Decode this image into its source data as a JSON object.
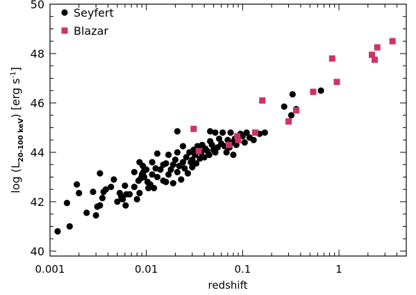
{
  "chart_data": {
    "type": "scatter",
    "xscale": "log",
    "xlim": [
      0.001,
      5.0
    ],
    "ylim": [
      39.8,
      50.0
    ],
    "xlabel": "redshift",
    "ylabel": {
      "prefix": "log (L",
      "subscript": "20-100 keV",
      "suffix": ") [erg s",
      "superscript": "-1",
      "close": "]"
    },
    "xticks": [
      {
        "value": 0.001,
        "label": "0.001"
      },
      {
        "value": 0.01,
        "label": "0.01"
      },
      {
        "value": 0.1,
        "label": "0.1"
      },
      {
        "value": 1,
        "label": "1"
      }
    ],
    "yticks": [
      {
        "value": 40,
        "label": "40"
      },
      {
        "value": 42,
        "label": "42"
      },
      {
        "value": 44,
        "label": "44"
      },
      {
        "value": 46,
        "label": "46"
      },
      {
        "value": 48,
        "label": "48"
      },
      {
        "value": 50,
        "label": "50"
      }
    ],
    "legend_position": "top-left",
    "series": [
      {
        "name": "Seyfert",
        "marker": "circle",
        "color": "#000000",
        "points": [
          [
            0.0012,
            40.8
          ],
          [
            0.0015,
            41.95
          ],
          [
            0.0016,
            41.0
          ],
          [
            0.0019,
            42.7
          ],
          [
            0.002,
            42.35
          ],
          [
            0.0024,
            41.55
          ],
          [
            0.0028,
            42.4
          ],
          [
            0.003,
            41.45
          ],
          [
            0.0031,
            41.8
          ],
          [
            0.0033,
            41.85
          ],
          [
            0.0033,
            43.15
          ],
          [
            0.0035,
            42.15
          ],
          [
            0.0036,
            42.4
          ],
          [
            0.0038,
            42.5
          ],
          [
            0.0043,
            42.6
          ],
          [
            0.0046,
            42.9
          ],
          [
            0.005,
            42.0
          ],
          [
            0.0053,
            42.35
          ],
          [
            0.0055,
            42.2
          ],
          [
            0.0057,
            42.1
          ],
          [
            0.006,
            42.65
          ],
          [
            0.0061,
            41.85
          ],
          [
            0.0062,
            42.3
          ],
          [
            0.0067,
            42.3
          ],
          [
            0.0075,
            42.6
          ],
          [
            0.0075,
            43.2
          ],
          [
            0.008,
            42.1
          ],
          [
            0.0083,
            42.85
          ],
          [
            0.0085,
            42.35
          ],
          [
            0.0085,
            43.6
          ],
          [
            0.0088,
            42.95
          ],
          [
            0.009,
            43.1
          ],
          [
            0.0092,
            43.45
          ],
          [
            0.0093,
            43.2
          ],
          [
            0.0095,
            43.0
          ],
          [
            0.01,
            43.3
          ],
          [
            0.0103,
            42.8
          ],
          [
            0.0105,
            42.55
          ],
          [
            0.011,
            42.7
          ],
          [
            0.0115,
            43.6
          ],
          [
            0.0115,
            43.1
          ],
          [
            0.012,
            42.55
          ],
          [
            0.0125,
            43.35
          ],
          [
            0.013,
            43.0
          ],
          [
            0.013,
            43.95
          ],
          [
            0.014,
            43.3
          ],
          [
            0.015,
            42.85
          ],
          [
            0.015,
            43.5
          ],
          [
            0.016,
            42.8
          ],
          [
            0.016,
            43.55
          ],
          [
            0.017,
            43.1
          ],
          [
            0.017,
            43.9
          ],
          [
            0.018,
            43.3
          ],
          [
            0.019,
            43.5
          ],
          [
            0.019,
            42.75
          ],
          [
            0.02,
            43.7
          ],
          [
            0.021,
            43.2
          ],
          [
            0.021,
            44.0
          ],
          [
            0.022,
            43.45
          ],
          [
            0.023,
            42.9
          ],
          [
            0.024,
            44.25
          ],
          [
            0.024,
            43.6
          ],
          [
            0.025,
            43.35
          ],
          [
            0.026,
            43.8
          ],
          [
            0.027,
            43.15
          ],
          [
            0.028,
            44.0
          ],
          [
            0.029,
            43.6
          ],
          [
            0.03,
            43.7
          ],
          [
            0.03,
            43.4
          ],
          [
            0.031,
            44.1
          ],
          [
            0.032,
            43.9
          ],
          [
            0.033,
            43.55
          ],
          [
            0.034,
            44.25
          ],
          [
            0.035,
            44.2
          ],
          [
            0.036,
            43.75
          ],
          [
            0.037,
            44.0
          ],
          [
            0.038,
            44.3
          ],
          [
            0.04,
            43.8
          ],
          [
            0.041,
            44.15
          ],
          [
            0.043,
            44.05
          ],
          [
            0.045,
            43.9
          ],
          [
            0.046,
            44.45
          ],
          [
            0.048,
            44.3
          ],
          [
            0.05,
            44.1
          ],
          [
            0.052,
            44.0
          ],
          [
            0.055,
            44.2
          ],
          [
            0.057,
            44.55
          ],
          [
            0.06,
            44.35
          ],
          [
            0.062,
            44.8
          ],
          [
            0.065,
            44.25
          ],
          [
            0.068,
            44.0
          ],
          [
            0.07,
            44.5
          ],
          [
            0.073,
            44.2
          ],
          [
            0.075,
            44.8
          ],
          [
            0.078,
            44.4
          ],
          [
            0.08,
            43.9
          ],
          [
            0.083,
            44.55
          ],
          [
            0.086,
            44.3
          ],
          [
            0.09,
            44.5
          ],
          [
            0.095,
            44.75
          ],
          [
            0.1,
            44.65
          ],
          [
            0.105,
            44.4
          ],
          [
            0.11,
            44.8
          ],
          [
            0.118,
            44.6
          ],
          [
            0.13,
            44.5
          ],
          [
            0.15,
            44.75
          ],
          [
            0.17,
            44.8
          ],
          [
            0.021,
            44.85
          ],
          [
            0.046,
            44.85
          ],
          [
            0.052,
            44.8
          ],
          [
            0.27,
            45.85
          ],
          [
            0.32,
            45.5
          ],
          [
            0.33,
            46.35
          ],
          [
            0.36,
            45.75
          ],
          [
            0.65,
            46.5
          ]
        ]
      },
      {
        "name": "Blazar",
        "marker": "square",
        "color": "#cc3366",
        "points": [
          [
            0.031,
            44.95
          ],
          [
            0.035,
            44.05
          ],
          [
            0.072,
            44.3
          ],
          [
            0.088,
            44.65
          ],
          [
            0.09,
            44.5
          ],
          [
            0.135,
            44.8
          ],
          [
            0.16,
            46.1
          ],
          [
            0.3,
            45.25
          ],
          [
            0.36,
            45.7
          ],
          [
            0.54,
            46.45
          ],
          [
            0.85,
            47.8
          ],
          [
            0.95,
            46.85
          ],
          [
            2.2,
            47.95
          ],
          [
            2.35,
            47.75
          ],
          [
            2.5,
            48.25
          ],
          [
            3.6,
            48.5
          ]
        ]
      }
    ]
  }
}
